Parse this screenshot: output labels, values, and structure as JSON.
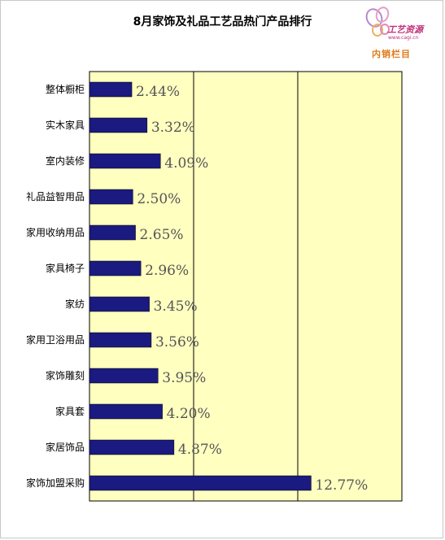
{
  "chart_data": {
    "type": "bar",
    "orientation": "horizontal",
    "title": "8月家饰及礼品工艺品热门产品排行",
    "categories": [
      "整体橱柜",
      "实木家具",
      "室内装修",
      "礼品益智用品",
      "家用收纳用品",
      "家具椅子",
      "家纺",
      "家用卫浴用品",
      "家饰雕刻",
      "家具套",
      "家居饰品",
      "家饰加盟采购"
    ],
    "values": [
      2.44,
      3.32,
      4.09,
      2.5,
      2.65,
      2.96,
      3.45,
      3.56,
      3.95,
      4.2,
      4.87,
      12.77
    ],
    "value_labels": [
      "2.44%",
      "3.32%",
      "4.09%",
      "2.50%",
      "2.65%",
      "2.96%",
      "3.45%",
      "3.56%",
      "3.95%",
      "4.20%",
      "4.87%",
      "12.77%"
    ],
    "xlim": [
      0,
      18
    ],
    "gridlines_at": [
      6,
      12
    ],
    "grid": true,
    "legend": "none",
    "colors": {
      "bar": "#1a1a80",
      "plot_background": "#ffffc0",
      "value_label": "#555555"
    }
  },
  "logo": {
    "name": "butterfly-logo",
    "text": "工艺资源",
    "url": "www.cagi.cn",
    "tagline": "内销栏目"
  }
}
